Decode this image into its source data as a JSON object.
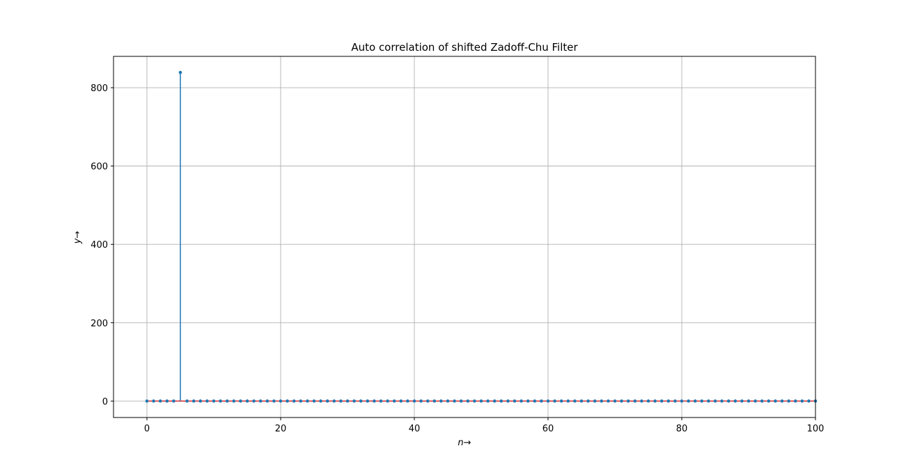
{
  "chart_data": {
    "type": "stem",
    "title": "Auto correlation of shifted Zadoff-Chu Filter",
    "xlabel": "n→",
    "ylabel": "y→",
    "xlim": [
      -5,
      100
    ],
    "ylim": [
      -42,
      880
    ],
    "xticks": [
      0,
      20,
      40,
      60,
      80,
      100
    ],
    "yticks": [
      0,
      200,
      400,
      600,
      800
    ],
    "grid": true,
    "colors": {
      "stem": "#1f77b4",
      "baseline": "#d62728",
      "grid": "#b0b0b0",
      "axes": "#000000"
    },
    "series": [
      {
        "x_start": 0,
        "x_end": 100,
        "default_value": 0,
        "nonzero": [
          {
            "x": 5,
            "y": 839
          }
        ]
      }
    ]
  }
}
